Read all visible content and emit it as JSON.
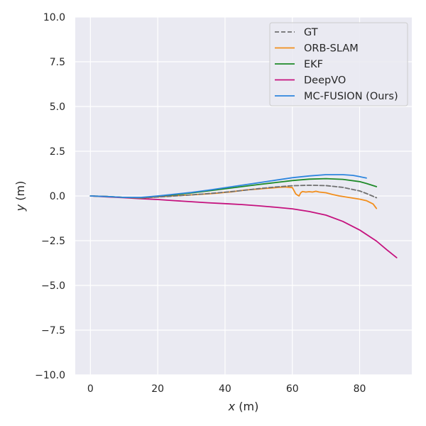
{
  "chart_data": {
    "type": "line",
    "title": "",
    "xlabel_var": "x",
    "xlabel_unit": "(m)",
    "ylabel_var": "y",
    "ylabel_unit": "(m)",
    "xlim": [
      -4.5,
      95.5
    ],
    "ylim": [
      -10,
      10
    ],
    "x_ticks": [
      0,
      20,
      40,
      60,
      80
    ],
    "x_tick_labels": [
      "0",
      "20",
      "40",
      "60",
      "80"
    ],
    "y_ticks": [
      10,
      7.5,
      5,
      2.5,
      0,
      -2.5,
      -5,
      -7.5,
      -10
    ],
    "y_tick_labels": [
      "10.0",
      "7.5",
      "5.0",
      "2.5",
      "0.0",
      "−2.5",
      "−5.0",
      "−7.5",
      "−10.0"
    ],
    "grid": true,
    "legend_position": "top-right",
    "background": "#eaeaf2",
    "series": [
      {
        "name": "GT",
        "color": "#707070",
        "dash": true,
        "x": [
          0,
          5,
          10,
          15,
          20,
          25,
          30,
          35,
          40,
          45,
          50,
          55,
          60,
          65,
          70,
          75,
          80,
          82,
          85
        ],
        "y": [
          0,
          -0.03,
          -0.08,
          -0.12,
          -0.06,
          0.0,
          0.06,
          0.13,
          0.21,
          0.3,
          0.41,
          0.5,
          0.57,
          0.6,
          0.58,
          0.48,
          0.28,
          0.14,
          -0.1
        ]
      },
      {
        "name": "ORB-SLAM",
        "color": "#f28e1c",
        "dash": false,
        "x": [
          0,
          5,
          10,
          15,
          20,
          25,
          30,
          35,
          38,
          40,
          42,
          44,
          46,
          48,
          50,
          52,
          54,
          56,
          58,
          59,
          60,
          60.5,
          61,
          61.5,
          62,
          62.5,
          63,
          64,
          65,
          66,
          67,
          68,
          70,
          72,
          74,
          76,
          78,
          80,
          82,
          84,
          85
        ],
        "y": [
          0,
          -0.03,
          -0.08,
          -0.12,
          -0.05,
          0.01,
          0.06,
          0.12,
          0.16,
          0.2,
          0.23,
          0.28,
          0.33,
          0.36,
          0.39,
          0.42,
          0.45,
          0.48,
          0.5,
          0.48,
          0.47,
          0.3,
          0.12,
          0.05,
          0.0,
          0.18,
          0.25,
          0.22,
          0.24,
          0.22,
          0.26,
          0.22,
          0.18,
          0.08,
          0.0,
          -0.06,
          -0.12,
          -0.18,
          -0.26,
          -0.45,
          -0.7
        ]
      },
      {
        "name": "EKF",
        "color": "#1e8a28",
        "dash": false,
        "x": [
          0,
          5,
          10,
          15,
          20,
          25,
          30,
          35,
          40,
          45,
          50,
          55,
          60,
          65,
          70,
          75,
          80,
          82,
          85
        ],
        "y": [
          0,
          -0.03,
          -0.08,
          -0.1,
          -0.02,
          0.07,
          0.17,
          0.28,
          0.4,
          0.52,
          0.64,
          0.75,
          0.86,
          0.94,
          0.97,
          0.93,
          0.8,
          0.7,
          0.52
        ]
      },
      {
        "name": "DeepVO",
        "color": "#c5127e",
        "dash": false,
        "x": [
          0,
          5,
          10,
          15,
          20,
          25,
          30,
          35,
          40,
          45,
          50,
          55,
          60,
          65,
          70,
          75,
          80,
          85,
          88,
          91
        ],
        "y": [
          0,
          -0.05,
          -0.1,
          -0.15,
          -0.2,
          -0.26,
          -0.32,
          -0.38,
          -0.43,
          -0.48,
          -0.55,
          -0.63,
          -0.72,
          -0.87,
          -1.07,
          -1.42,
          -1.9,
          -2.52,
          -3.0,
          -3.45
        ]
      },
      {
        "name": "MC-FUSION (Ours)",
        "color": "#2e86de",
        "dash": false,
        "x": [
          0,
          5,
          10,
          15,
          20,
          25,
          30,
          35,
          40,
          45,
          50,
          55,
          60,
          65,
          70,
          75,
          78,
          80,
          82
        ],
        "y": [
          0,
          -0.03,
          -0.08,
          -0.08,
          0.0,
          0.1,
          0.2,
          0.32,
          0.46,
          0.6,
          0.74,
          0.88,
          1.02,
          1.12,
          1.19,
          1.19,
          1.15,
          1.08,
          1.0
        ]
      }
    ]
  }
}
